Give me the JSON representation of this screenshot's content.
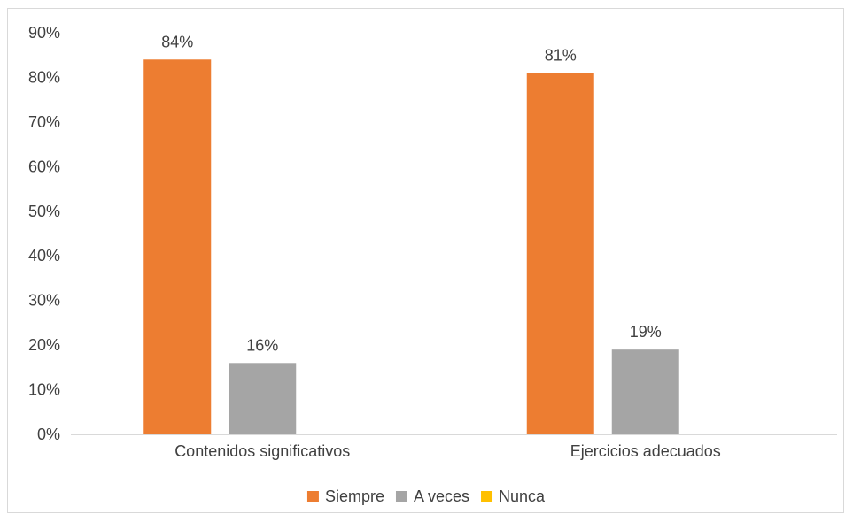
{
  "chart_data": {
    "type": "bar",
    "categories": [
      "Contenidos significativos",
      "Ejercicios adecuados"
    ],
    "series": [
      {
        "name": "Siempre",
        "values": [
          0.84,
          0.81
        ],
        "labels": [
          "84%",
          "81%"
        ],
        "color": "#ED7D31"
      },
      {
        "name": "A veces",
        "values": [
          0.16,
          0.19
        ],
        "labels": [
          "16%",
          "19%"
        ],
        "color": "#A5A5A5"
      },
      {
        "name": "Nunca",
        "values": [
          0,
          0
        ],
        "labels": [
          "",
          ""
        ],
        "color": "#FFC000"
      }
    ],
    "ylim": [
      0,
      0.9
    ],
    "yticks": [
      {
        "value": 0,
        "label": "0%"
      },
      {
        "value": 0.1,
        "label": "10%"
      },
      {
        "value": 0.2,
        "label": "20%"
      },
      {
        "value": 0.3,
        "label": "30%"
      },
      {
        "value": 0.4,
        "label": "40%"
      },
      {
        "value": 0.5,
        "label": "50%"
      },
      {
        "value": 0.6,
        "label": "60%"
      },
      {
        "value": 0.7,
        "label": "70%"
      },
      {
        "value": 0.8,
        "label": "80%"
      },
      {
        "value": 0.9,
        "label": "90%"
      }
    ],
    "grid": false,
    "legend": "bottom-center",
    "title": "",
    "xlabel": "",
    "ylabel": ""
  }
}
